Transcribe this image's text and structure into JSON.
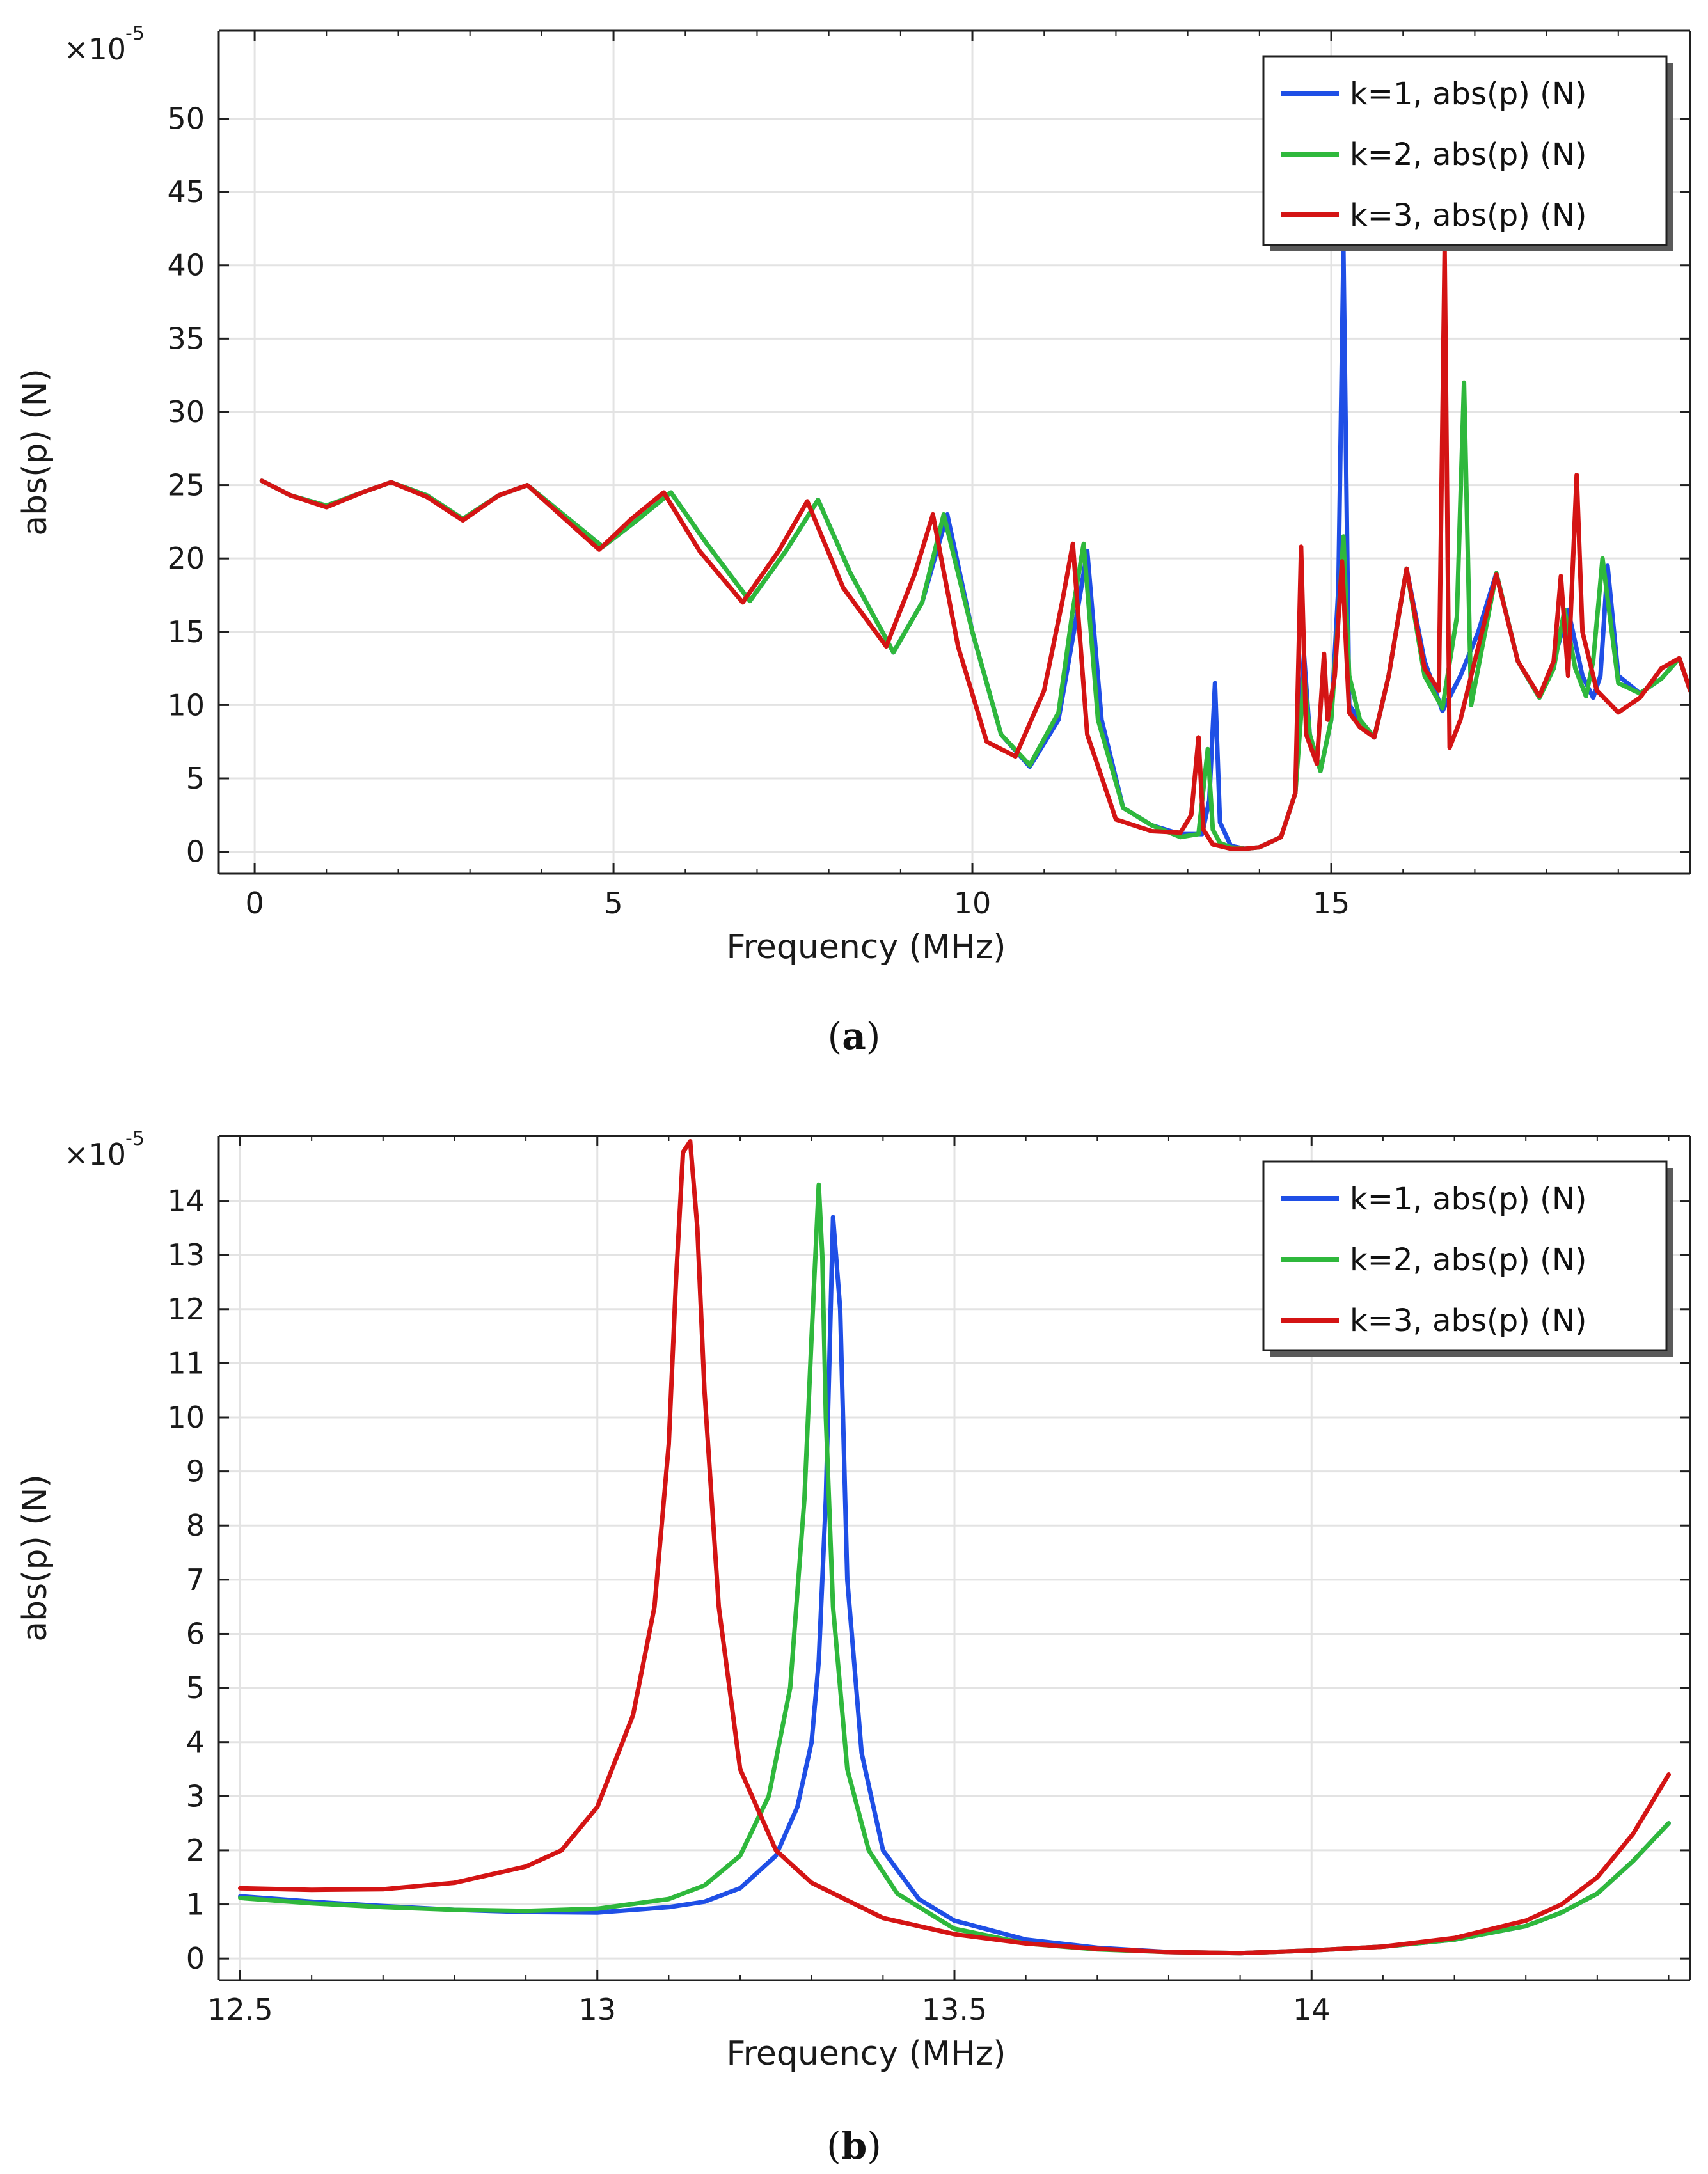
{
  "chart_data": [
    {
      "id": "a",
      "type": "line",
      "caption_label": "a",
      "xlabel": "Frequency (MHz)",
      "ylabel": "abs(p) (N)",
      "y_multiplier": "×10",
      "y_multiplier_exp": "-5",
      "xlim": [
        -0.5,
        20.0
      ],
      "ylim": [
        -1.5,
        56
      ],
      "xticks": [
        0,
        5,
        10,
        15
      ],
      "xtick_labels": [
        "0",
        "5",
        "10",
        "15"
      ],
      "yticks": [
        0,
        5,
        10,
        15,
        20,
        25,
        30,
        35,
        40,
        45,
        50
      ],
      "ytick_labels": [
        "0",
        "5",
        "10",
        "15",
        "20",
        "25",
        "30",
        "35",
        "40",
        "45",
        "50"
      ],
      "grid": true,
      "legend_position": "top-right",
      "series": [
        {
          "name": "k=1, abs(p) (N)",
          "color": "#1f4fe6",
          "x": [
            0.1,
            0.5,
            1.0,
            1.5,
            1.9,
            2.4,
            2.9,
            3.4,
            3.8,
            4.3,
            4.85,
            5.3,
            5.8,
            6.3,
            6.9,
            7.4,
            7.85,
            8.3,
            8.9,
            9.3,
            9.65,
            10.0,
            10.4,
            10.8,
            11.2,
            11.45,
            11.6,
            11.8,
            12.1,
            12.5,
            12.9,
            13.2,
            13.3,
            13.38,
            13.45,
            13.6,
            13.8,
            14.0,
            14.3,
            14.5,
            14.62,
            14.7,
            14.85,
            15.0,
            15.1,
            15.17,
            15.25,
            15.4,
            15.6,
            15.8,
            16.05,
            16.3,
            16.55,
            16.8,
            17.05,
            17.3,
            17.6,
            17.9,
            18.1,
            18.3,
            18.5,
            18.65,
            18.75,
            18.85,
            19.0,
            19.3,
            19.6,
            19.85,
            20.0
          ],
          "y": [
            25.3,
            24.3,
            23.6,
            24.5,
            25.2,
            24.3,
            22.7,
            24.3,
            25.0,
            23.0,
            20.8,
            22.5,
            24.5,
            21.0,
            17.1,
            20.5,
            24.0,
            19.0,
            13.6,
            17.0,
            23.0,
            15.0,
            8.0,
            5.8,
            9.0,
            16.0,
            20.5,
            9.0,
            3.0,
            1.8,
            1.2,
            1.2,
            3.5,
            11.5,
            2.0,
            0.4,
            0.2,
            0.3,
            1.0,
            4.0,
            13.5,
            8.0,
            5.5,
            9.0,
            18.0,
            41.0,
            10.0,
            9.0,
            7.8,
            12.0,
            19.3,
            13.0,
            9.6,
            12.0,
            15.0,
            19.0,
            13.0,
            10.5,
            13.0,
            16.5,
            12.0,
            10.5,
            12.0,
            19.5,
            12.0,
            10.8,
            11.8,
            13.2,
            11.0
          ]
        },
        {
          "name": "k=2, abs(p) (N)",
          "color": "#2fb83c",
          "x": [
            0.1,
            0.5,
            1.0,
            1.5,
            1.9,
            2.4,
            2.9,
            3.4,
            3.8,
            4.3,
            4.85,
            5.3,
            5.8,
            6.3,
            6.9,
            7.4,
            7.85,
            8.3,
            8.9,
            9.3,
            9.6,
            10.0,
            10.4,
            10.8,
            11.2,
            11.4,
            11.55,
            11.75,
            12.1,
            12.5,
            12.9,
            13.15,
            13.28,
            13.35,
            13.45,
            13.6,
            13.8,
            14.0,
            14.3,
            14.5,
            14.62,
            14.7,
            14.85,
            15.0,
            15.1,
            15.17,
            15.25,
            15.4,
            15.6,
            15.8,
            16.05,
            16.3,
            16.55,
            16.75,
            16.85,
            16.95,
            17.3,
            17.6,
            17.9,
            18.1,
            18.25,
            18.4,
            18.55,
            18.65,
            18.78,
            19.0,
            19.3,
            19.6,
            19.85,
            20.0
          ],
          "y": [
            25.3,
            24.3,
            23.6,
            24.5,
            25.2,
            24.3,
            22.7,
            24.3,
            25.0,
            23.0,
            20.8,
            22.5,
            24.5,
            21.0,
            17.1,
            20.5,
            24.0,
            19.0,
            13.6,
            17.0,
            23.0,
            15.0,
            8.0,
            5.9,
            9.5,
            16.5,
            21.0,
            9.0,
            3.0,
            1.8,
            1.0,
            1.2,
            7.0,
            1.5,
            0.6,
            0.3,
            0.2,
            0.3,
            1.0,
            4.0,
            12.0,
            8.0,
            5.5,
            9.0,
            16.0,
            21.5,
            12.0,
            9.0,
            7.8,
            12.0,
            19.3,
            12.0,
            9.8,
            16.0,
            32.0,
            10.0,
            19.0,
            13.0,
            10.5,
            12.5,
            16.5,
            12.5,
            10.6,
            13.0,
            20.0,
            11.5,
            10.8,
            11.8,
            13.2,
            11.0
          ]
        },
        {
          "name": "k=3, abs(p) (N)",
          "color": "#d41414",
          "x": [
            0.1,
            0.5,
            1.0,
            1.5,
            1.9,
            2.4,
            2.9,
            3.4,
            3.8,
            4.3,
            4.8,
            5.25,
            5.7,
            6.2,
            6.8,
            7.3,
            7.7,
            8.2,
            8.8,
            9.2,
            9.45,
            9.8,
            10.2,
            10.6,
            11.0,
            11.25,
            11.4,
            11.6,
            12.0,
            12.5,
            12.9,
            13.05,
            13.15,
            13.22,
            13.35,
            13.6,
            13.8,
            14.0,
            14.3,
            14.5,
            14.58,
            14.65,
            14.8,
            14.9,
            14.95,
            15.05,
            15.15,
            15.25,
            15.4,
            15.6,
            15.8,
            16.05,
            16.3,
            16.5,
            16.58,
            16.65,
            16.8,
            17.0,
            17.3,
            17.6,
            17.9,
            18.1,
            18.2,
            18.3,
            18.42,
            18.5,
            18.7,
            19.0,
            19.3,
            19.6,
            19.85,
            20.0
          ],
          "y": [
            25.3,
            24.3,
            23.5,
            24.5,
            25.2,
            24.2,
            22.6,
            24.3,
            25.0,
            22.8,
            20.6,
            22.7,
            24.5,
            20.5,
            17.0,
            20.5,
            23.9,
            18.0,
            14.0,
            19.0,
            23.0,
            14.0,
            7.5,
            6.5,
            11.0,
            17.0,
            21.0,
            8.0,
            2.2,
            1.4,
            1.3,
            2.5,
            7.8,
            1.5,
            0.5,
            0.2,
            0.2,
            0.3,
            1.0,
            4.0,
            20.8,
            8.0,
            6.0,
            13.5,
            9.0,
            12.0,
            19.8,
            9.5,
            8.5,
            7.8,
            12.0,
            19.3,
            12.5,
            11.0,
            41.0,
            7.1,
            9.0,
            13.0,
            18.9,
            13.0,
            10.6,
            13.0,
            18.8,
            12.0,
            25.7,
            15.0,
            11.0,
            9.5,
            10.5,
            12.5,
            13.2,
            11.0
          ]
        }
      ]
    },
    {
      "id": "b",
      "type": "line",
      "caption_label": "b",
      "xlabel": "Frequency (MHz)",
      "ylabel": "abs(p) (N)",
      "y_multiplier": "×10",
      "y_multiplier_exp": "-5",
      "xlim": [
        12.47,
        14.53
      ],
      "ylim": [
        -0.4,
        15.2
      ],
      "xticks": [
        12.5,
        13,
        13.5,
        14
      ],
      "xtick_labels": [
        "12.5",
        "13",
        "13.5",
        "14"
      ],
      "yticks": [
        0,
        1,
        2,
        3,
        4,
        5,
        6,
        7,
        8,
        9,
        10,
        11,
        12,
        13,
        14
      ],
      "ytick_labels": [
        "0",
        "1",
        "2",
        "3",
        "4",
        "5",
        "6",
        "7",
        "8",
        "9",
        "10",
        "11",
        "12",
        "13",
        "14"
      ],
      "grid": true,
      "legend_position": "top-right",
      "series": [
        {
          "name": "k=1, abs(p) (N)",
          "color": "#1f4fe6",
          "x": [
            12.5,
            12.6,
            12.7,
            12.8,
            12.9,
            13.0,
            13.1,
            13.15,
            13.2,
            13.25,
            13.28,
            13.3,
            13.31,
            13.32,
            13.33,
            13.34,
            13.35,
            13.37,
            13.4,
            13.45,
            13.5,
            13.6,
            13.7,
            13.8,
            13.9,
            14.0,
            14.1,
            14.2,
            14.3,
            14.35,
            14.4,
            14.45,
            14.5
          ],
          "y": [
            1.15,
            1.05,
            0.97,
            0.9,
            0.86,
            0.85,
            0.95,
            1.05,
            1.3,
            1.9,
            2.8,
            4.0,
            5.5,
            8.5,
            13.7,
            12.0,
            7.0,
            3.8,
            2.0,
            1.1,
            0.7,
            0.35,
            0.2,
            0.12,
            0.1,
            0.15,
            0.22,
            0.35,
            0.6,
            0.85,
            1.2,
            1.8,
            2.5
          ]
        },
        {
          "name": "k=2, abs(p) (N)",
          "color": "#2fb83c",
          "x": [
            12.5,
            12.6,
            12.7,
            12.8,
            12.9,
            13.0,
            13.1,
            13.15,
            13.2,
            13.24,
            13.27,
            13.29,
            13.3,
            13.31,
            13.315,
            13.32,
            13.33,
            13.35,
            13.38,
            13.42,
            13.5,
            13.6,
            13.7,
            13.8,
            13.9,
            14.0,
            14.1,
            14.2,
            14.3,
            14.35,
            14.4,
            14.45,
            14.5
          ],
          "y": [
            1.12,
            1.02,
            0.95,
            0.9,
            0.88,
            0.92,
            1.1,
            1.35,
            1.9,
            3.0,
            5.0,
            8.5,
            11.5,
            14.3,
            13.0,
            10.0,
            6.5,
            3.5,
            2.0,
            1.2,
            0.55,
            0.28,
            0.17,
            0.12,
            0.1,
            0.15,
            0.22,
            0.35,
            0.6,
            0.85,
            1.2,
            1.8,
            2.5
          ]
        },
        {
          "name": "k=3, abs(p) (N)",
          "color": "#d41414",
          "x": [
            12.5,
            12.6,
            12.7,
            12.8,
            12.9,
            12.95,
            13.0,
            13.05,
            13.08,
            13.1,
            13.11,
            13.12,
            13.13,
            13.14,
            13.15,
            13.17,
            13.2,
            13.25,
            13.3,
            13.4,
            13.5,
            13.6,
            13.7,
            13.8,
            13.9,
            14.0,
            14.1,
            14.2,
            14.3,
            14.35,
            14.4,
            14.45,
            14.5
          ],
          "y": [
            1.3,
            1.27,
            1.28,
            1.4,
            1.7,
            2.0,
            2.8,
            4.5,
            6.5,
            9.5,
            12.5,
            14.9,
            15.1,
            13.5,
            10.5,
            6.5,
            3.5,
            2.0,
            1.4,
            0.75,
            0.45,
            0.28,
            0.18,
            0.12,
            0.1,
            0.15,
            0.22,
            0.38,
            0.7,
            1.0,
            1.5,
            2.3,
            3.4
          ]
        }
      ]
    }
  ]
}
